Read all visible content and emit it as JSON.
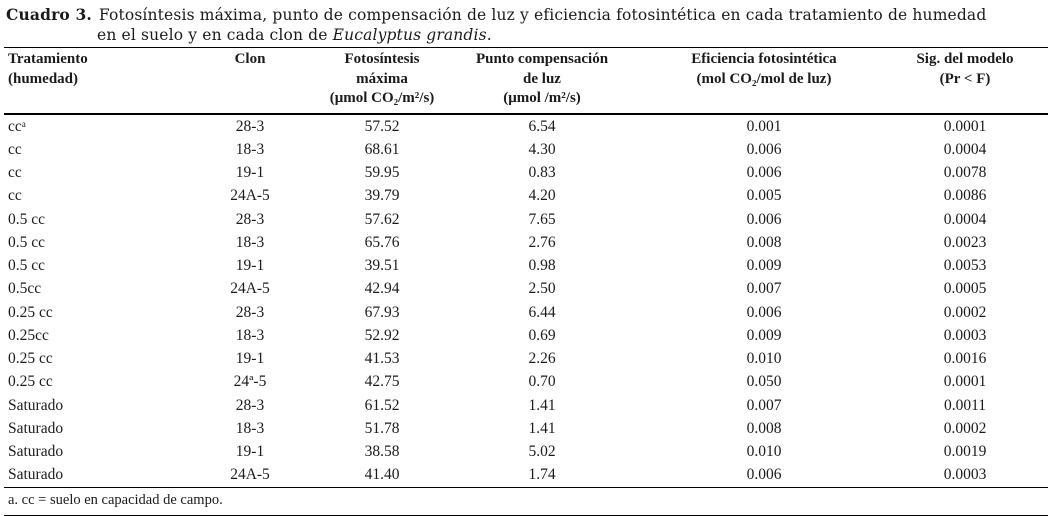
{
  "title": {
    "label": "Cuadro 3.",
    "line1": "Fotosíntesis máxima, punto de compensación de luz y eficiencia fotosintética en cada tratamiento de humedad",
    "line2_prefix": "en el suelo y en cada clon de ",
    "species": "Eucalyptus grandis",
    "suffix": "."
  },
  "table": {
    "headers": [
      {
        "line1": "Tratamiento",
        "line2": "(humedad)"
      },
      {
        "line1": "Clon"
      },
      {
        "line1": "Fotosíntesis máxima",
        "line2": "(μmol CO₂/m²/s)"
      },
      {
        "line1": "Punto compensación",
        "line2": "de luz",
        "line3": "(μmol /m²/s)"
      },
      {
        "line1": "Eficiencia fotosintética",
        "line2": "(mol CO₂/mol de luz)"
      },
      {
        "line1": "Sig. del modelo",
        "line2": "(Pr < F)"
      }
    ],
    "rows": [
      [
        "ccᵃ",
        "28-3",
        "57.52",
        "6.54",
        "0.001",
        "0.0001"
      ],
      [
        "cc",
        "18-3",
        "68.61",
        "4.30",
        "0.006",
        "0.0004"
      ],
      [
        "cc",
        "19-1",
        "59.95",
        "0.83",
        "0.006",
        "0.0078"
      ],
      [
        "cc",
        "24A-5",
        "39.79",
        "4.20",
        "0.005",
        "0.0086"
      ],
      [
        "0.5 cc",
        "28-3",
        "57.62",
        "7.65",
        "0.006",
        "0.0004"
      ],
      [
        "0.5 cc",
        "18-3",
        "65.76",
        "2.76",
        "0.008",
        "0.0023"
      ],
      [
        "0.5 cc",
        "19-1",
        "39.51",
        "0.98",
        "0.009",
        "0.0053"
      ],
      [
        "0.5cc",
        "24A-5",
        "42.94",
        "2.50",
        "0.007",
        "0.0005"
      ],
      [
        "0.25 cc",
        "28-3",
        "67.93",
        "6.44",
        "0.006",
        "0.0002"
      ],
      [
        "0.25cc",
        "18-3",
        "52.92",
        "0.69",
        "0.009",
        "0.0003"
      ],
      [
        "0.25 cc",
        "19-1",
        "41.53",
        "2.26",
        "0.010",
        "0.0016"
      ],
      [
        "0.25 cc",
        "24ª-5",
        "42.75",
        "0.70",
        "0.050",
        "0.0001"
      ],
      [
        "Saturado",
        "28-3",
        "61.52",
        "1.41",
        "0.007",
        "0.0011"
      ],
      [
        "Saturado",
        "18-3",
        "51.78",
        "1.41",
        "0.008",
        "0.0002"
      ],
      [
        "Saturado",
        "19-1",
        "38.58",
        "5.02",
        "0.010",
        "0.0019"
      ],
      [
        "Saturado",
        "24A-5",
        "41.40",
        "1.74",
        "0.006",
        "0.0003"
      ]
    ]
  },
  "footnote": "a. cc = suelo en capacidad de campo.",
  "colors": {
    "background": "#ffffff",
    "text": "#1b1b1b",
    "rule": "#000000"
  }
}
